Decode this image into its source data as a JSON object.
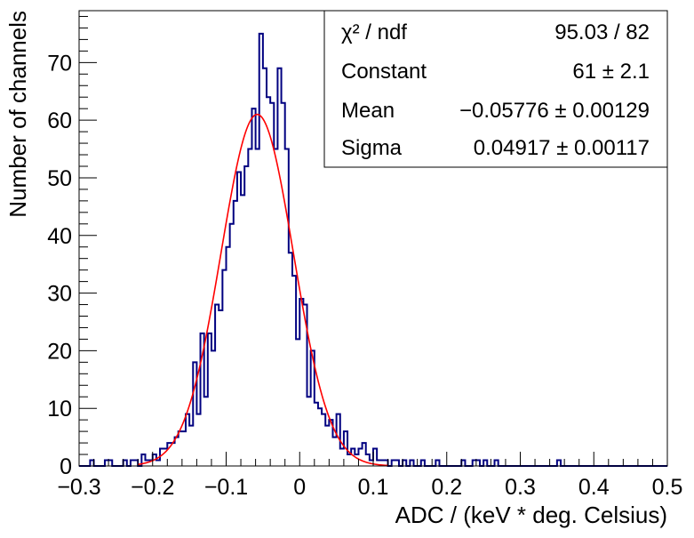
{
  "chart_data": {
    "type": "histogram",
    "xlabel": "ADC / (keV * deg. Celsius)",
    "ylabel": "Number of channels",
    "xlim": [
      -0.3,
      0.5
    ],
    "ylim": [
      0,
      79
    ],
    "xticks": [
      -0.3,
      -0.2,
      -0.1,
      0,
      0.1,
      0.2,
      0.3,
      0.4,
      0.5
    ],
    "xtick_labels": [
      "−0.3",
      "−0.2",
      "−0.1",
      "0",
      "0.1",
      "0.2",
      "0.3",
      "0.4",
      "0.5"
    ],
    "yticks": [
      0,
      10,
      20,
      30,
      40,
      50,
      60,
      70
    ],
    "ytick_labels": [
      "0",
      "10",
      "20",
      "30",
      "40",
      "50",
      "60",
      "70"
    ],
    "bin_width": 0.005,
    "histogram": {
      "color": "#000080",
      "bins": [
        [
          -0.285,
          1
        ],
        [
          -0.265,
          1
        ],
        [
          -0.26,
          1
        ],
        [
          -0.24,
          1
        ],
        [
          -0.23,
          1
        ],
        [
          -0.225,
          1
        ],
        [
          -0.215,
          2
        ],
        [
          -0.21,
          1
        ],
        [
          -0.205,
          1
        ],
        [
          -0.2,
          2
        ],
        [
          -0.195,
          1
        ],
        [
          -0.19,
          3
        ],
        [
          -0.185,
          3
        ],
        [
          -0.18,
          4
        ],
        [
          -0.175,
          4
        ],
        [
          -0.17,
          5
        ],
        [
          -0.165,
          6
        ],
        [
          -0.16,
          6
        ],
        [
          -0.155,
          9
        ],
        [
          -0.15,
          7
        ],
        [
          -0.145,
          18
        ],
        [
          -0.14,
          9
        ],
        [
          -0.135,
          23
        ],
        [
          -0.13,
          12
        ],
        [
          -0.125,
          23
        ],
        [
          -0.12,
          20
        ],
        [
          -0.115,
          28
        ],
        [
          -0.11,
          27
        ],
        [
          -0.105,
          34
        ],
        [
          -0.1,
          38
        ],
        [
          -0.095,
          42
        ],
        [
          -0.09,
          46
        ],
        [
          -0.085,
          51
        ],
        [
          -0.08,
          47
        ],
        [
          -0.075,
          52
        ],
        [
          -0.07,
          55
        ],
        [
          -0.065,
          62
        ],
        [
          -0.06,
          55
        ],
        [
          -0.055,
          75
        ],
        [
          -0.05,
          69
        ],
        [
          -0.045,
          64
        ],
        [
          -0.04,
          63
        ],
        [
          -0.035,
          55
        ],
        [
          -0.03,
          69
        ],
        [
          -0.025,
          63
        ],
        [
          -0.02,
          55
        ],
        [
          -0.015,
          37
        ],
        [
          -0.01,
          33
        ],
        [
          -0.005,
          22
        ],
        [
          0,
          29
        ],
        [
          0.005,
          28
        ],
        [
          0.01,
          12
        ],
        [
          0.015,
          20
        ],
        [
          0.02,
          11
        ],
        [
          0.025,
          10
        ],
        [
          0.03,
          9
        ],
        [
          0.035,
          7
        ],
        [
          0.04,
          8
        ],
        [
          0.045,
          5
        ],
        [
          0.05,
          9
        ],
        [
          0.055,
          3
        ],
        [
          0.06,
          6
        ],
        [
          0.065,
          2
        ],
        [
          0.07,
          3
        ],
        [
          0.075,
          2
        ],
        [
          0.08,
          3
        ],
        [
          0.085,
          4
        ],
        [
          0.09,
          2
        ],
        [
          0.095,
          1
        ],
        [
          0.1,
          3
        ],
        [
          0.105,
          1
        ],
        [
          0.11,
          1
        ],
        [
          0.115,
          1
        ],
        [
          0.125,
          1
        ],
        [
          0.13,
          1
        ],
        [
          0.14,
          1
        ],
        [
          0.15,
          1
        ],
        [
          0.165,
          1
        ],
        [
          0.185,
          1
        ],
        [
          0.22,
          1
        ],
        [
          0.235,
          1
        ],
        [
          0.24,
          1
        ],
        [
          0.25,
          1
        ],
        [
          0.265,
          1
        ],
        [
          0.35,
          1
        ]
      ]
    },
    "fit": {
      "function": "gaus",
      "color": "#ff0000",
      "constant": 61,
      "mean": -0.05776,
      "sigma": 0.04917,
      "x_range": [
        -0.22,
        0.12
      ]
    },
    "stats_box": {
      "position": "top-right",
      "rows": [
        {
          "label": "χ² / ndf",
          "value": "95.03 / 82"
        },
        {
          "label": "Constant",
          "value": "61 ± 2.1"
        },
        {
          "label": "Mean",
          "value": "−0.05776 ± 0.00129"
        },
        {
          "label": "Sigma",
          "value": "0.04917 ± 0.00117"
        }
      ]
    }
  }
}
